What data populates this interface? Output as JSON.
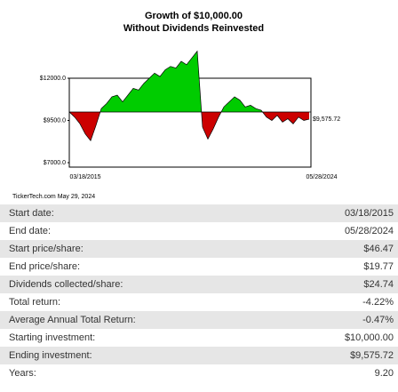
{
  "chart_data": {
    "type": "area",
    "title": "Growth of $10,000.00",
    "subtitle": "Without Dividends Reinvested",
    "credit": "TickerTech.com May 29, 2024",
    "categories": [
      "03/18/2015",
      null,
      null,
      null,
      null,
      null,
      null,
      null,
      null,
      null,
      null,
      null,
      null,
      null,
      null,
      null,
      null,
      null,
      null,
      null,
      null,
      null,
      null,
      null,
      null,
      null,
      null,
      null,
      null,
      null,
      null,
      null,
      null,
      null,
      null,
      null,
      null,
      null,
      null,
      null,
      null,
      null,
      null,
      null,
      null,
      "05/28/2024"
    ],
    "series": [
      {
        "values": [
          10000,
          9700,
          9300,
          8700,
          8300,
          9200,
          10200,
          10500,
          10900,
          11000,
          10600,
          11000,
          11400,
          11300,
          11700,
          12000,
          12300,
          12100,
          12500,
          12700,
          12600,
          13000,
          12800,
          13200,
          13600,
          9100,
          8400,
          9000,
          9700,
          10300,
          10600,
          10900,
          10700,
          10300,
          10400,
          10200,
          10100,
          9700,
          9500,
          9800,
          9400,
          9600,
          9300,
          9700,
          9500,
          9575.72
        ],
        "value_labels": [
          null,
          null,
          null,
          null,
          null,
          null,
          null,
          null,
          null,
          null,
          null,
          null,
          null,
          null,
          null,
          null,
          null,
          null,
          null,
          null,
          null,
          null,
          null,
          null,
          null,
          null,
          null,
          null,
          null,
          null,
          null,
          null,
          null,
          null,
          null,
          null,
          null,
          null,
          null,
          null,
          null,
          null,
          null,
          null,
          null,
          "$9,575.72"
        ]
      }
    ],
    "baseline": 10000,
    "color_above": "#00cc00",
    "color_below": "#cc0000",
    "ylim": [
      7000,
      12000
    ],
    "yticks": [
      {
        "value": 7000,
        "label": "$7000.0"
      },
      {
        "value": 9500,
        "label": "$9500.0"
      },
      {
        "value": 12000,
        "label": "$12000.0"
      }
    ]
  },
  "table": {
    "rows": [
      [
        "Start date:",
        "03/18/2015"
      ],
      [
        "End date:",
        "05/28/2024"
      ],
      [
        "Start price/share:",
        "$46.47"
      ],
      [
        "End price/share:",
        "$19.77"
      ],
      [
        "Dividends collected/share:",
        "$24.74"
      ],
      [
        "Total return:",
        "-4.22%"
      ],
      [
        "Average Annual Total Return:",
        "-0.47%"
      ],
      [
        "Starting investment:",
        "$10,000.00"
      ],
      [
        "Ending investment:",
        "$9,575.72"
      ],
      [
        "Years:",
        "9.20"
      ]
    ]
  }
}
